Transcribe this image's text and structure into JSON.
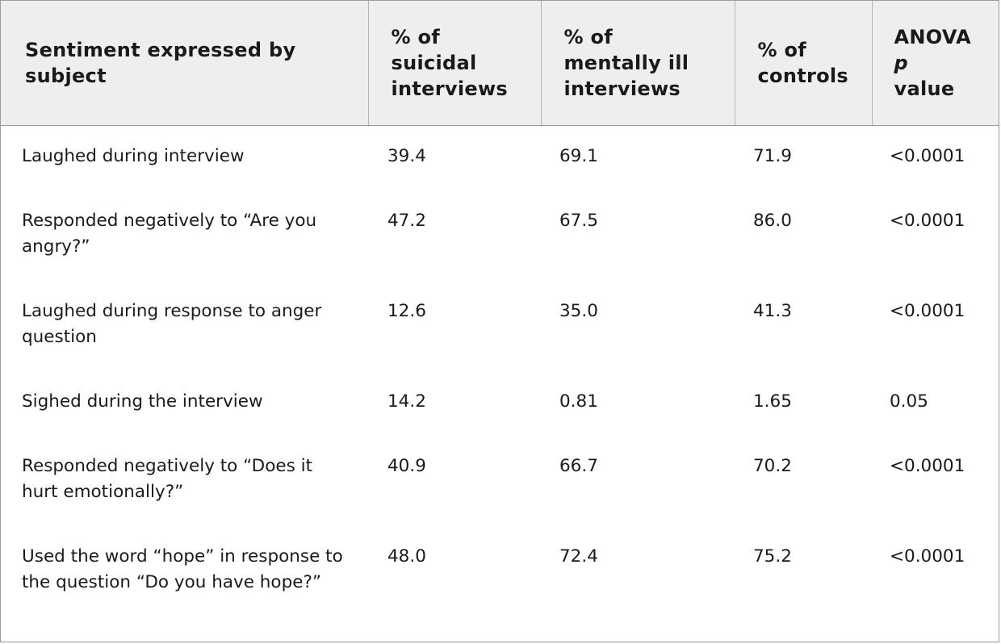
{
  "table": {
    "headers": [
      [
        "Sentiment expressed by",
        "subject"
      ],
      [
        "% of",
        "suicidal",
        "interviews"
      ],
      [
        "% of",
        "mentally ill",
        "interviews"
      ],
      [
        "% of",
        "controls"
      ],
      [
        "ANOVA",
        "p",
        "value"
      ]
    ],
    "rows": [
      [
        "Laughed during interview",
        "39.4",
        "69.1",
        "71.9",
        "<0.0001"
      ],
      [
        "Responded negatively to “Are you angry?”",
        "47.2",
        "67.5",
        "86.0",
        "<0.0001"
      ],
      [
        "Laughed during response to anger question",
        "12.6",
        "35.0",
        "41.3",
        "<0.0001"
      ],
      [
        "Sighed during the interview",
        "14.2",
        "0.81",
        "1.65",
        "0.05"
      ],
      [
        "Responded negatively to “Does it hurt emotionally?”",
        "40.9",
        "66.7",
        "70.2",
        "<0.0001"
      ],
      [
        "Used the word “hope” in response to the question “Do you have hope?”",
        "48.0",
        "72.4",
        "75.2",
        "<0.0001"
      ]
    ]
  }
}
